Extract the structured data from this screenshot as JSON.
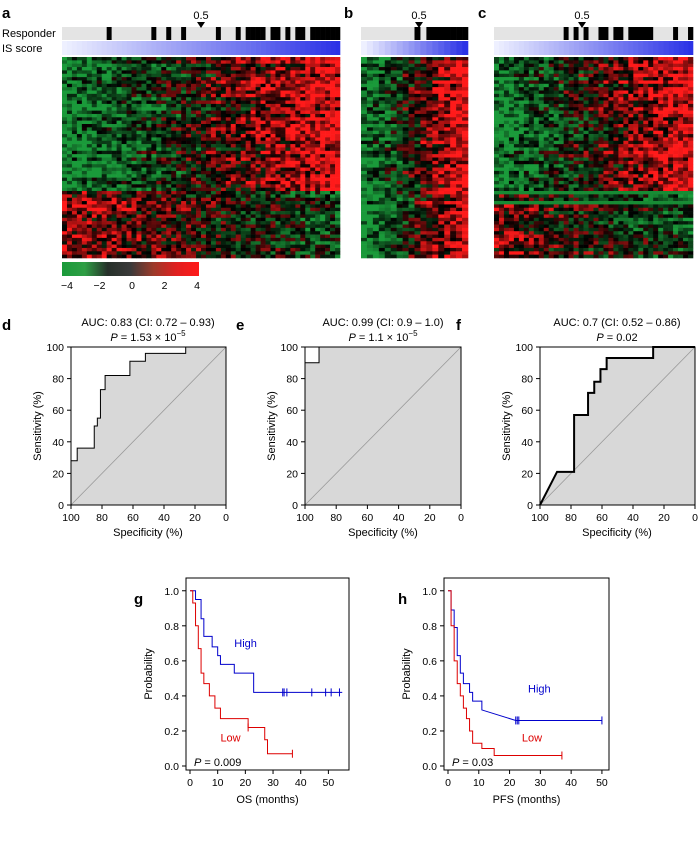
{
  "panels": {
    "a": "a",
    "b": "b",
    "c": "c",
    "d": "d",
    "e": "e",
    "f": "f",
    "g": "g",
    "h": "h"
  },
  "heatmaps": {
    "row_labels": {
      "responder": "Responder",
      "is_score": "IS score"
    },
    "threshold_label": "0.5",
    "colors": {
      "low": "#1a9a3a",
      "mid": "#000000",
      "high": "#ff1a1a",
      "score_low": "#eef0ff",
      "score_high": "#2b32e6",
      "responder": "#000000",
      "nonresponder": "#e4e4e4"
    },
    "maps": [
      {
        "id": "a",
        "n_samples": 56,
        "n_genes": 60,
        "responders": [
          0,
          0,
          0,
          0,
          0,
          0,
          0,
          0,
          0,
          1,
          0,
          0,
          0,
          0,
          0,
          0,
          0,
          0,
          1,
          0,
          0,
          1,
          0,
          0,
          1,
          0,
          0,
          0,
          0,
          0,
          0,
          1,
          0,
          0,
          0,
          1,
          0,
          1,
          1,
          1,
          1,
          0,
          1,
          1,
          0,
          1,
          0,
          1,
          1,
          0,
          1,
          1,
          1,
          1,
          1,
          1
        ]
      },
      {
        "id": "b",
        "n_samples": 18,
        "n_genes": 60,
        "responders": [
          0,
          0,
          0,
          0,
          0,
          0,
          0,
          0,
          0,
          1,
          0,
          1,
          1,
          1,
          1,
          1,
          1,
          1
        ]
      },
      {
        "id": "c",
        "n_samples": 40,
        "n_genes": 60,
        "responders": [
          0,
          0,
          0,
          0,
          0,
          0,
          0,
          0,
          0,
          0,
          0,
          0,
          0,
          0,
          1,
          0,
          1,
          0,
          1,
          0,
          0,
          1,
          1,
          0,
          1,
          1,
          0,
          1,
          1,
          1,
          1,
          1,
          0,
          0,
          0,
          0,
          1,
          0,
          0,
          1
        ]
      }
    ],
    "colorbar": {
      "ticks": [
        "−4",
        "−2",
        "0",
        "2",
        "4"
      ],
      "stops": [
        "#1a9a3a",
        "#2f9e45",
        "#26302a",
        "#3a3a3a",
        "#9b3a2a",
        "#e02020",
        "#ff1a1a"
      ]
    }
  },
  "chart_data": [
    {
      "id": "d",
      "type": "line",
      "title": "AUC: 0.83 (CI: 0.72 – 0.93)",
      "subtitle": {
        "lead": "P",
        "rest": " = 1.53 × 10",
        "exp": "−5"
      },
      "xlabel": "Specificity (%)",
      "ylabel": "Sensitivity (%)",
      "xlim": [
        100,
        0
      ],
      "ylim": [
        0,
        100
      ],
      "xticks": [
        "100",
        "80",
        "60",
        "40",
        "20",
        "0"
      ],
      "yticks": [
        "0",
        "20",
        "40",
        "60",
        "80",
        "100"
      ],
      "series": [
        {
          "x": [
            100,
            100,
            96,
            96,
            89,
            89,
            85,
            85,
            83,
            83,
            81,
            81,
            78,
            78,
            70,
            70,
            62,
            62,
            59,
            59,
            52,
            52,
            48,
            48,
            26,
            26,
            0
          ],
          "y": [
            0,
            28,
            28,
            36,
            36,
            36,
            36,
            50,
            50,
            55,
            55,
            73,
            73,
            82,
            82,
            82,
            82,
            91,
            91,
            91,
            91,
            96,
            96,
            96,
            96,
            100,
            100
          ]
        }
      ],
      "diagonal": true,
      "fill": "#d8d8d8",
      "line_width": 1
    },
    {
      "id": "e",
      "type": "line",
      "title": "AUC: 0.99 (CI: 0.9 – 1.0)",
      "subtitle": {
        "lead": "P",
        "rest": " = 1.1 × 10",
        "exp": "−5"
      },
      "xlabel": "Specificity (%)",
      "ylabel": "Sensitivity (%)",
      "xlim": [
        100,
        0
      ],
      "ylim": [
        0,
        100
      ],
      "xticks": [
        "100",
        "80",
        "60",
        "40",
        "20",
        "0"
      ],
      "yticks": [
        "0",
        "20",
        "40",
        "60",
        "80",
        "100"
      ],
      "series": [
        {
          "x": [
            100,
            100,
            91,
            91,
            0
          ],
          "y": [
            0,
            90,
            90,
            100,
            100
          ]
        }
      ],
      "diagonal": true,
      "fill": "#d8d8d8",
      "line_width": 1
    },
    {
      "id": "f",
      "type": "line",
      "title": "AUC: 0.7 (CI: 0.52 – 0.86)",
      "subtitle": {
        "lead": "P",
        "rest": " = 0.02",
        "exp": ""
      },
      "xlabel": "Specificity (%)",
      "ylabel": "Sensitivity (%)",
      "xlim": [
        100,
        0
      ],
      "ylim": [
        0,
        100
      ],
      "xticks": [
        "100",
        "80",
        "60",
        "40",
        "20",
        "0"
      ],
      "yticks": [
        "0",
        "20",
        "40",
        "60",
        "80",
        "100"
      ],
      "series": [
        {
          "x": [
            100,
            89,
            78,
            78,
            69,
            69,
            65,
            65,
            61,
            61,
            57,
            57,
            27,
            27,
            0
          ],
          "y": [
            0,
            21,
            21,
            57,
            57,
            71,
            71,
            78,
            78,
            86,
            86,
            93,
            93,
            100,
            100
          ]
        }
      ],
      "diagonal": true,
      "fill": "#d8d8d8",
      "line_width": 2
    },
    {
      "id": "g",
      "type": "line",
      "xlabel": "OS (months)",
      "ylabel": "Probability",
      "xlim": [
        0,
        56
      ],
      "ylim": [
        0,
        1.05
      ],
      "xticks": [
        0,
        10,
        20,
        30,
        40,
        50
      ],
      "yticks": [
        0.0,
        0.2,
        0.4,
        0.6,
        0.8,
        1.0
      ],
      "ytick_labels": [
        "0.0",
        "0.2",
        "0.4",
        "0.6",
        "0.8",
        "1.0"
      ],
      "annotation": {
        "lead": "P",
        "rest": " = 0.009"
      },
      "series": [
        {
          "name": "High",
          "color": "#0000cc",
          "x": [
            0,
            2,
            2,
            4,
            4,
            5,
            5,
            8,
            8,
            10,
            10,
            11,
            11,
            12,
            12,
            16,
            16,
            23,
            23,
            33,
            55
          ],
          "y": [
            1.0,
            1.0,
            0.95,
            0.95,
            0.84,
            0.84,
            0.74,
            0.74,
            0.68,
            0.68,
            0.63,
            0.63,
            0.58,
            0.58,
            0.58,
            0.58,
            0.53,
            0.53,
            0.42,
            0.42,
            0.42
          ],
          "censor_x": [
            33.5,
            34,
            35,
            44,
            49,
            51,
            54
          ],
          "censor_y": 0.42
        },
        {
          "name": "Low",
          "color": "#dd0000",
          "x": [
            0,
            1,
            1,
            2,
            2,
            3,
            3,
            4,
            4,
            5,
            5,
            7,
            7,
            9,
            9,
            11,
            11,
            21,
            21,
            27,
            27,
            28,
            28,
            37
          ],
          "y": [
            1.0,
            1.0,
            0.93,
            0.93,
            0.8,
            0.8,
            0.67,
            0.67,
            0.53,
            0.53,
            0.47,
            0.47,
            0.4,
            0.4,
            0.33,
            0.33,
            0.27,
            0.27,
            0.22,
            0.22,
            0.15,
            0.15,
            0.07,
            0.07
          ],
          "censor_x": [
            21,
            37
          ],
          "censor_y_list": [
            0.22,
            0.07
          ]
        }
      ],
      "label_pos": {
        "High": [
          16,
          0.68
        ],
        "Low": [
          11,
          0.14
        ]
      }
    },
    {
      "id": "h",
      "type": "line",
      "xlabel": "PFS (months)",
      "ylabel": "Probability",
      "xlim": [
        0,
        51
      ],
      "ylim": [
        0,
        1.05
      ],
      "xticks": [
        0,
        10,
        20,
        30,
        40,
        50
      ],
      "yticks": [
        0.0,
        0.2,
        0.4,
        0.6,
        0.8,
        1.0
      ],
      "ytick_labels": [
        "0.0",
        "0.2",
        "0.4",
        "0.6",
        "0.8",
        "1.0"
      ],
      "annotation": {
        "lead": "P",
        "rest": " = 0.03"
      },
      "series": [
        {
          "name": "High",
          "color": "#0000cc",
          "x": [
            0,
            1,
            1,
            2,
            2,
            3,
            3,
            4,
            4,
            5,
            5,
            7,
            7,
            8,
            8,
            11,
            11,
            22,
            50
          ],
          "y": [
            1.0,
            1.0,
            0.89,
            0.89,
            0.79,
            0.79,
            0.63,
            0.63,
            0.53,
            0.53,
            0.47,
            0.47,
            0.42,
            0.42,
            0.37,
            0.37,
            0.32,
            0.26,
            0.26
          ],
          "censor_x": [
            22,
            22.5,
            23,
            50
          ],
          "censor_y": 0.26
        },
        {
          "name": "Low",
          "color": "#dd0000",
          "x": [
            0,
            1,
            1,
            2,
            2,
            3,
            3,
            4,
            4,
            5,
            5,
            6,
            6,
            7,
            7,
            8,
            8,
            11,
            11,
            15,
            15,
            37
          ],
          "y": [
            1.0,
            1.0,
            0.8,
            0.8,
            0.6,
            0.6,
            0.47,
            0.47,
            0.4,
            0.4,
            0.33,
            0.33,
            0.27,
            0.27,
            0.2,
            0.2,
            0.13,
            0.13,
            0.1,
            0.1,
            0.06,
            0.06
          ],
          "censor_x": [
            37
          ],
          "censor_y_list": [
            0.06
          ]
        }
      ],
      "label_pos": {
        "High": [
          26,
          0.42
        ],
        "Low": [
          24,
          0.14
        ]
      }
    }
  ]
}
